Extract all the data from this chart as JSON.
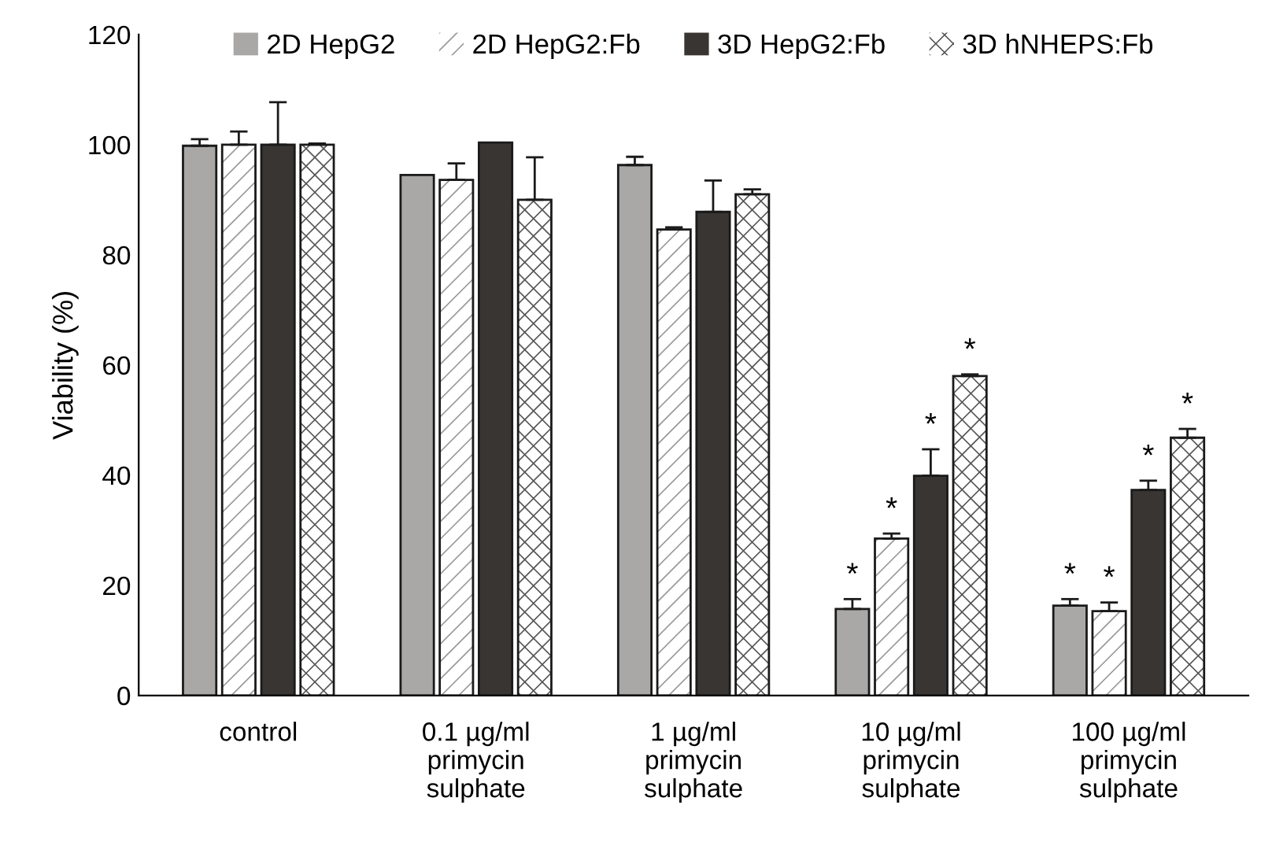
{
  "chart_data": {
    "type": "bar",
    "ylabel": "Viability (%)",
    "categories": [
      "control",
      "0.1 µg/ml\nprimycin\nsulphate",
      "1 µg/ml\nprimycin\nsulphate",
      "10 µg/ml\nprimycin\nsulphate",
      "100 µg/ml\nprimycin\nsulphate"
    ],
    "series": [
      {
        "name": "2D HepG2",
        "color": "#aaa8a6",
        "values": [
          99.8,
          94.5,
          96.3,
          15.7,
          16.3
        ],
        "errors": [
          [
            99.8,
            101
          ],
          null,
          [
            96.3,
            97.8
          ],
          [
            15.7,
            17.5
          ],
          [
            16.3,
            17.5
          ]
        ],
        "value_labels": [
          null,
          null,
          null,
          "*",
          "*"
        ]
      },
      {
        "name": "2D HepG2:Fb",
        "color": "#ffffff",
        "values": [
          100,
          93.6,
          84.6,
          28.5,
          15.3
        ],
        "errors": [
          [
            100,
            102.4
          ],
          [
            93.6,
            96.6
          ],
          [
            84.6,
            85
          ],
          [
            28.5,
            29.4
          ],
          [
            15.3,
            16.9
          ]
        ],
        "value_labels": [
          null,
          null,
          null,
          "*",
          "*"
        ]
      },
      {
        "name": "3D HepG2:Fb",
        "color": "#383533",
        "values": [
          100,
          100.4,
          87.8,
          39.9,
          37.3
        ],
        "errors": [
          [
            100,
            107.7
          ],
          null,
          [
            87.8,
            93.5
          ],
          [
            39.9,
            44.7
          ],
          [
            37.3,
            39
          ]
        ],
        "value_labels": [
          null,
          null,
          null,
          "*",
          "*"
        ]
      },
      {
        "name": "3D hNHEPS:Fb",
        "color": "#ffffff",
        "values": [
          100,
          90,
          91,
          58,
          46.8
        ],
        "errors": [
          [
            100,
            100.2
          ],
          [
            90,
            97.7
          ],
          [
            91,
            91.9
          ],
          [
            58,
            58.3
          ],
          [
            46.8,
            48.4
          ]
        ],
        "value_labels": [
          null,
          null,
          null,
          "*",
          "*"
        ]
      }
    ],
    "ylim": [
      0,
      120
    ],
    "yticks": [
      0,
      20,
      40,
      60,
      80,
      100,
      120
    ],
    "grid": false,
    "legend": "top"
  }
}
